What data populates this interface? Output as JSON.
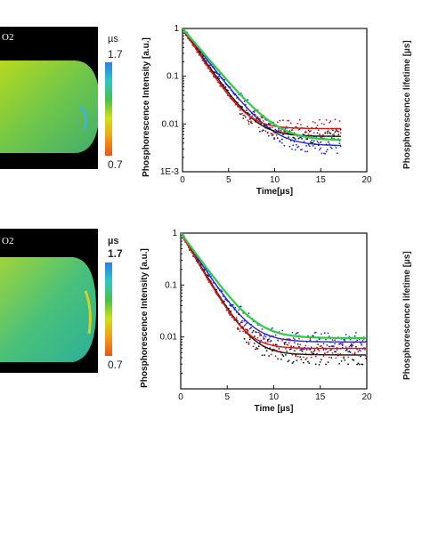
{
  "colors": {
    "blue": "#1f2bd6",
    "black": "#111111",
    "red": "#d11a1a",
    "green": "#2ecc40"
  },
  "colorbar": {
    "unit": "µs",
    "max": "1.7",
    "min": "0.7"
  },
  "image_label": "O2",
  "right_axis_label": "Phosphorescence lifetime [µs]",
  "chart_data": [
    {
      "type": "scatter",
      "xlabel": "Time[µs]",
      "ylabel": "Phosphorescence Intensity [a.u.]",
      "xlim": [
        0,
        20
      ],
      "ylim": [
        0.001,
        1
      ],
      "yscale": "log",
      "xticks": [
        "0",
        "5",
        "10",
        "15",
        "20"
      ],
      "yticks": [
        "1E-3",
        "0.01",
        "0.1",
        "1"
      ],
      "x_max_data": 17.2,
      "series": [
        {
          "color": "blue",
          "tau": 1.75,
          "plateau": 0.0035
        },
        {
          "color": "black",
          "tau": 1.55,
          "plateau": 0.0055
        },
        {
          "color": "red",
          "tau": 1.45,
          "plateau": 0.008
        },
        {
          "color": "green",
          "tau": 1.9,
          "plateau": 0.0045,
          "fit": true
        }
      ]
    },
    {
      "type": "scatter",
      "xlabel": "Time [µs]",
      "ylabel": "Phosphorescence Intensity [a.u.]",
      "xlim": [
        0,
        20
      ],
      "ylim": [
        0.001,
        1
      ],
      "yscale": "log",
      "xticks": [
        "0",
        "5",
        "10",
        "15",
        "20"
      ],
      "yticks": [
        "0.01",
        "0.1",
        "1"
      ],
      "x_max_data": 20,
      "series": [
        {
          "color": "blue",
          "tau": 1.6,
          "plateau": 0.008
        },
        {
          "color": "black",
          "tau": 1.45,
          "plateau": 0.0045
        },
        {
          "color": "red",
          "tau": 1.4,
          "plateau": 0.006
        },
        {
          "color": "green",
          "tau": 1.75,
          "plateau": 0.0095,
          "fit": true
        }
      ]
    }
  ]
}
